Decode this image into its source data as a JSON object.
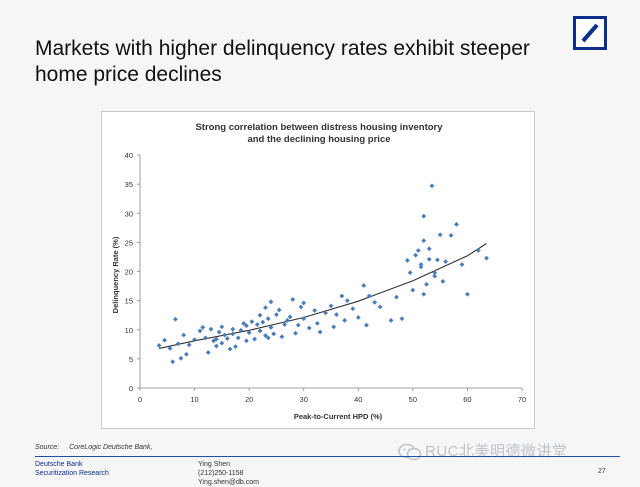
{
  "slide": {
    "title_line1": "Markets with higher delinquency rates exhibit steeper",
    "title_line2": "home price declines",
    "page_number": "27"
  },
  "brand": {
    "logo": "deutsche-bank-logo",
    "logo_color": "#0c2e8c",
    "name_line1": "Deutsche Bank",
    "name_line2": "Securitization Research"
  },
  "contact": {
    "name": "Ying Shen",
    "phone": "(212)250-1158",
    "email": "Ying.shen@db.com"
  },
  "source": {
    "label": "Source:",
    "text": "CoreLogic Deutsche Bank,"
  },
  "watermark": {
    "text": "RUC北美明德微讲堂",
    "icon": "wechat-icon"
  },
  "chart_data": {
    "type": "scatter",
    "title_line1": "Strong correlation between distress housing inventory",
    "title_line2": "and the declining housing price",
    "xlabel": "Peak-to-Current HPD (%)",
    "ylabel": "Delinquency Rate (%)",
    "xlim": [
      0,
      70
    ],
    "ylim": [
      0,
      40
    ],
    "xticks": [
      0,
      10,
      20,
      30,
      40,
      50,
      60,
      70
    ],
    "yticks": [
      0,
      5,
      10,
      15,
      20,
      25,
      30,
      35,
      40
    ],
    "grid": false,
    "legend": "none",
    "marker_color": "#4a7db8",
    "trend_color": "#333333",
    "trendline": {
      "type": "exponential",
      "x": [
        3.5,
        10,
        20,
        30,
        40,
        50,
        60,
        63.5
      ],
      "y": [
        6.8,
        8.1,
        9.9,
        12.1,
        14.9,
        18.4,
        22.7,
        24.8
      ]
    },
    "points": [
      [
        3.5,
        7.3
      ],
      [
        4.5,
        8.2
      ],
      [
        5.5,
        6.8
      ],
      [
        6,
        4.5
      ],
      [
        6.5,
        11.8
      ],
      [
        7,
        7.6
      ],
      [
        7.5,
        5.1
      ],
      [
        8,
        9.1
      ],
      [
        8.5,
        5.8
      ],
      [
        9,
        7.4
      ],
      [
        10,
        8.3
      ],
      [
        11,
        9.8
      ],
      [
        11.5,
        10.4
      ],
      [
        12,
        8.6
      ],
      [
        12.5,
        6.1
      ],
      [
        13,
        10.1
      ],
      [
        13.5,
        8.1
      ],
      [
        14,
        7.2
      ],
      [
        14,
        8.4
      ],
      [
        14.5,
        9.6
      ],
      [
        15,
        7.7
      ],
      [
        15,
        10.5
      ],
      [
        15.5,
        9.1
      ],
      [
        16,
        8.5
      ],
      [
        16.5,
        6.7
      ],
      [
        17,
        9.3
      ],
      [
        17,
        10.1
      ],
      [
        17.5,
        7.1
      ],
      [
        18,
        8.6
      ],
      [
        18.5,
        9.9
      ],
      [
        19,
        11.1
      ],
      [
        19.5,
        10.7
      ],
      [
        19.5,
        8.1
      ],
      [
        20,
        9.5
      ],
      [
        20.5,
        11.4
      ],
      [
        21,
        8.4
      ],
      [
        21.5,
        10.9
      ],
      [
        22,
        9.8
      ],
      [
        22,
        12.5
      ],
      [
        22.5,
        11.3
      ],
      [
        23,
        9.0
      ],
      [
        23,
        13.8
      ],
      [
        23.5,
        8.6
      ],
      [
        23.5,
        11.9
      ],
      [
        24,
        14.8
      ],
      [
        24,
        10.4
      ],
      [
        24.5,
        9.3
      ],
      [
        25,
        12.6
      ],
      [
        25.5,
        13.4
      ],
      [
        26,
        8.8
      ],
      [
        26.5,
        10.9
      ],
      [
        27,
        11.6
      ],
      [
        27.5,
        12.2
      ],
      [
        28,
        15.2
      ],
      [
        28.5,
        9.4
      ],
      [
        29,
        10.8
      ],
      [
        29.5,
        13.9
      ],
      [
        30,
        14.6
      ],
      [
        30,
        11.9
      ],
      [
        31,
        10.3
      ],
      [
        32,
        13.3
      ],
      [
        32.5,
        11.1
      ],
      [
        33,
        9.6
      ],
      [
        34,
        12.9
      ],
      [
        35,
        14.1
      ],
      [
        35.5,
        10.5
      ],
      [
        36,
        12.6
      ],
      [
        37,
        15.8
      ],
      [
        37.5,
        11.6
      ],
      [
        38,
        15.0
      ],
      [
        39,
        13.6
      ],
      [
        40,
        12.1
      ],
      [
        41,
        17.6
      ],
      [
        41.5,
        10.8
      ],
      [
        42,
        15.8
      ],
      [
        43,
        14.7
      ],
      [
        44,
        13.9
      ],
      [
        46,
        11.6
      ],
      [
        47,
        15.6
      ],
      [
        48,
        11.9
      ],
      [
        49,
        21.9
      ],
      [
        49.5,
        19.8
      ],
      [
        50,
        16.8
      ],
      [
        50.5,
        22.8
      ],
      [
        51,
        23.6
      ],
      [
        51.5,
        21.2
      ],
      [
        51.5,
        20.8
      ],
      [
        52,
        29.5
      ],
      [
        52.5,
        17.8
      ],
      [
        53,
        22.1
      ],
      [
        53.5,
        34.7
      ],
      [
        54,
        19.8
      ],
      [
        55,
        26.3
      ],
      [
        55.5,
        18.3
      ],
      [
        56,
        21.7
      ],
      [
        57,
        26.2
      ],
      [
        58,
        28.1
      ],
      [
        59,
        21.2
      ],
      [
        60,
        16.1
      ],
      [
        62,
        23.6
      ],
      [
        63.5,
        22.3
      ],
      [
        52,
        25.3
      ],
      [
        53,
        23.9
      ],
      [
        54,
        19.2
      ],
      [
        52,
        16.1
      ],
      [
        54.5,
        22.0
      ]
    ]
  }
}
